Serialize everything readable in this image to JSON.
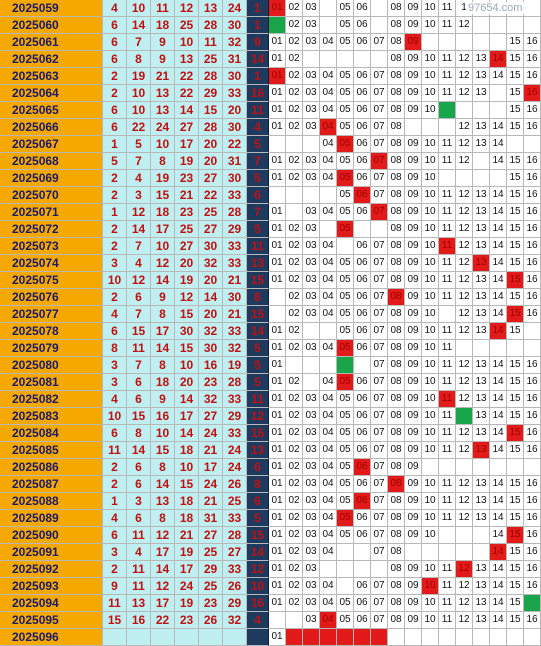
{
  "watermark": "97654.com",
  "colors": {
    "issue_bg": "#f5a800",
    "red_ball_bg": "#bfeff0",
    "blue_ball_bg": "#1f3a5f",
    "hit_red": "#e31a1a",
    "hit_green": "#19a64a"
  },
  "rows": [
    {
      "issue": "2025059",
      "reds": [
        "4",
        "10",
        "11",
        "12",
        "13",
        "24"
      ],
      "blue": "1",
      "trend": [
        "01",
        "02",
        "03",
        "",
        "05",
        "06",
        "",
        "08",
        "09",
        "10",
        "11",
        "1",
        "",
        "",
        "",
        ""
      ],
      "hot": [
        0
      ],
      "green": []
    },
    {
      "issue": "2025060",
      "reds": [
        "6",
        "14",
        "18",
        "25",
        "28",
        "30"
      ],
      "blue": "1",
      "trend": [
        "",
        "02",
        "03",
        "",
        "05",
        "06",
        "",
        "08",
        "09",
        "10",
        "11",
        "12",
        "",
        "",
        "",
        ""
      ],
      "hot": [],
      "green": [
        0
      ]
    },
    {
      "issue": "2025061",
      "reds": [
        "6",
        "7",
        "9",
        "10",
        "11",
        "32"
      ],
      "blue": "9",
      "trend": [
        "01",
        "02",
        "03",
        "04",
        "05",
        "06",
        "07",
        "08",
        "09",
        "",
        "",
        "",
        "",
        "",
        "15",
        "16"
      ],
      "hot": [
        8
      ],
      "green": []
    },
    {
      "issue": "2025062",
      "reds": [
        "6",
        "8",
        "9",
        "13",
        "25",
        "31"
      ],
      "blue": "14",
      "trend": [
        "01",
        "02",
        "",
        "",
        "",
        "",
        "",
        "08",
        "09",
        "10",
        "11",
        "12",
        "13",
        "14",
        "15",
        "16"
      ],
      "hot": [
        13
      ],
      "green": []
    },
    {
      "issue": "2025063",
      "reds": [
        "2",
        "19",
        "21",
        "22",
        "28",
        "30"
      ],
      "blue": "1",
      "trend": [
        "01",
        "02",
        "03",
        "04",
        "05",
        "06",
        "07",
        "08",
        "09",
        "10",
        "11",
        "12",
        "13",
        "14",
        "15",
        "16"
      ],
      "hot": [
        0
      ],
      "green": []
    },
    {
      "issue": "2025064",
      "reds": [
        "2",
        "10",
        "13",
        "22",
        "29",
        "33"
      ],
      "blue": "16",
      "trend": [
        "01",
        "02",
        "03",
        "04",
        "05",
        "06",
        "07",
        "08",
        "09",
        "10",
        "11",
        "12",
        "13",
        "",
        "15",
        "16"
      ],
      "hot": [
        15
      ],
      "green": []
    },
    {
      "issue": "2025065",
      "reds": [
        "6",
        "10",
        "13",
        "14",
        "15",
        "20"
      ],
      "blue": "11",
      "trend": [
        "01",
        "02",
        "03",
        "04",
        "05",
        "06",
        "07",
        "08",
        "09",
        "10",
        "11",
        "",
        "",
        "",
        "15",
        "16"
      ],
      "hot": [],
      "green": [
        10
      ]
    },
    {
      "issue": "2025066",
      "reds": [
        "6",
        "22",
        "24",
        "27",
        "28",
        "30"
      ],
      "blue": "4",
      "trend": [
        "01",
        "02",
        "03",
        "04",
        "05",
        "06",
        "07",
        "08",
        "",
        "",
        "",
        "12",
        "13",
        "14",
        "15",
        "16"
      ],
      "hot": [
        3
      ],
      "green": []
    },
    {
      "issue": "2025067",
      "reds": [
        "1",
        "5",
        "10",
        "17",
        "20",
        "22"
      ],
      "blue": "5",
      "trend": [
        "",
        "",
        "",
        "04",
        "05",
        "06",
        "07",
        "08",
        "09",
        "10",
        "11",
        "12",
        "13",
        "14",
        "",
        ""
      ],
      "hot": [
        4
      ],
      "green": []
    },
    {
      "issue": "2025068",
      "reds": [
        "5",
        "7",
        "8",
        "19",
        "20",
        "31"
      ],
      "blue": "7",
      "trend": [
        "01",
        "02",
        "03",
        "04",
        "05",
        "06",
        "07",
        "08",
        "09",
        "10",
        "11",
        "12",
        "",
        "14",
        "15",
        "16"
      ],
      "hot": [
        6
      ],
      "green": []
    },
    {
      "issue": "2025069",
      "reds": [
        "2",
        "4",
        "19",
        "23",
        "27",
        "30"
      ],
      "blue": "5",
      "trend": [
        "01",
        "02",
        "03",
        "04",
        "05",
        "06",
        "07",
        "08",
        "09",
        "10",
        "",
        "",
        "",
        "",
        "15",
        "16"
      ],
      "hot": [
        4
      ],
      "green": []
    },
    {
      "issue": "2025070",
      "reds": [
        "2",
        "3",
        "15",
        "21",
        "22",
        "33"
      ],
      "blue": "6",
      "trend": [
        "",
        "",
        "",
        "",
        "05",
        "06",
        "07",
        "08",
        "09",
        "10",
        "11",
        "12",
        "13",
        "14",
        "15",
        "16"
      ],
      "hot": [
        5
      ],
      "green": []
    },
    {
      "issue": "2025071",
      "reds": [
        "1",
        "12",
        "18",
        "23",
        "25",
        "28"
      ],
      "blue": "7",
      "trend": [
        "01",
        "",
        "03",
        "04",
        "05",
        "06",
        "07",
        "08",
        "09",
        "10",
        "11",
        "12",
        "13",
        "14",
        "15",
        "16"
      ],
      "hot": [
        6
      ],
      "green": []
    },
    {
      "issue": "2025072",
      "reds": [
        "2",
        "14",
        "17",
        "25",
        "27",
        "29"
      ],
      "blue": "5",
      "trend": [
        "01",
        "02",
        "03",
        "",
        "05",
        "",
        "",
        "08",
        "09",
        "10",
        "11",
        "12",
        "13",
        "14",
        "15",
        "16"
      ],
      "hot": [
        4
      ],
      "green": []
    },
    {
      "issue": "2025073",
      "reds": [
        "2",
        "7",
        "10",
        "27",
        "30",
        "33"
      ],
      "blue": "11",
      "trend": [
        "01",
        "02",
        "03",
        "04",
        "",
        "06",
        "07",
        "08",
        "09",
        "10",
        "11",
        "12",
        "13",
        "14",
        "15",
        "16"
      ],
      "hot": [
        10
      ],
      "green": []
    },
    {
      "issue": "2025074",
      "reds": [
        "3",
        "4",
        "12",
        "20",
        "32",
        "33"
      ],
      "blue": "13",
      "trend": [
        "01",
        "02",
        "03",
        "04",
        "05",
        "06",
        "07",
        "08",
        "09",
        "10",
        "11",
        "12",
        "13",
        "14",
        "15",
        "16"
      ],
      "hot": [
        12
      ],
      "green": []
    },
    {
      "issue": "2025075",
      "reds": [
        "10",
        "12",
        "14",
        "19",
        "20",
        "21"
      ],
      "blue": "15",
      "trend": [
        "01",
        "02",
        "03",
        "04",
        "05",
        "06",
        "07",
        "08",
        "09",
        "10",
        "11",
        "12",
        "13",
        "14",
        "15",
        "16"
      ],
      "hot": [
        14
      ],
      "green": []
    },
    {
      "issue": "2025076",
      "reds": [
        "2",
        "6",
        "9",
        "12",
        "14",
        "30"
      ],
      "blue": "8",
      "trend": [
        "",
        "02",
        "03",
        "04",
        "05",
        "06",
        "07",
        "08",
        "09",
        "10",
        "11",
        "12",
        "13",
        "14",
        "15",
        "16"
      ],
      "hot": [
        7
      ],
      "green": []
    },
    {
      "issue": "2025077",
      "reds": [
        "4",
        "7",
        "8",
        "15",
        "20",
        "21"
      ],
      "blue": "15",
      "trend": [
        "",
        "02",
        "03",
        "04",
        "05",
        "06",
        "07",
        "08",
        "09",
        "10",
        "",
        "12",
        "13",
        "14",
        "15",
        "16"
      ],
      "hot": [
        14
      ],
      "green": []
    },
    {
      "issue": "2025078",
      "reds": [
        "6",
        "15",
        "17",
        "30",
        "32",
        "33"
      ],
      "blue": "14",
      "trend": [
        "01",
        "02",
        "",
        "",
        "05",
        "06",
        "07",
        "08",
        "09",
        "10",
        "11",
        "12",
        "13",
        "14",
        "15",
        ""
      ],
      "hot": [
        13
      ],
      "green": []
    },
    {
      "issue": "2025079",
      "reds": [
        "8",
        "11",
        "14",
        "15",
        "30",
        "32"
      ],
      "blue": "5",
      "trend": [
        "01",
        "02",
        "03",
        "04",
        "05",
        "06",
        "07",
        "08",
        "09",
        "10",
        "11",
        "",
        "",
        "",
        "",
        ""
      ],
      "hot": [
        4
      ],
      "green": []
    },
    {
      "issue": "2025080",
      "reds": [
        "3",
        "7",
        "8",
        "10",
        "16",
        "19"
      ],
      "blue": "5",
      "trend": [
        "01",
        "",
        "",
        "",
        "05",
        "",
        "07",
        "08",
        "09",
        "10",
        "11",
        "12",
        "13",
        "14",
        "15",
        "16"
      ],
      "hot": [],
      "green": [
        4
      ]
    },
    {
      "issue": "2025081",
      "reds": [
        "3",
        "6",
        "18",
        "20",
        "23",
        "28"
      ],
      "blue": "5",
      "trend": [
        "01",
        "02",
        "",
        "04",
        "05",
        "06",
        "07",
        "08",
        "09",
        "10",
        "11",
        "12",
        "13",
        "14",
        "15",
        "16"
      ],
      "hot": [
        4
      ],
      "green": []
    },
    {
      "issue": "2025082",
      "reds": [
        "4",
        "6",
        "9",
        "14",
        "32",
        "33"
      ],
      "blue": "11",
      "trend": [
        "01",
        "02",
        "03",
        "04",
        "05",
        "06",
        "07",
        "08",
        "09",
        "10",
        "11",
        "12",
        "13",
        "14",
        "15",
        "16"
      ],
      "hot": [
        10
      ],
      "green": []
    },
    {
      "issue": "2025083",
      "reds": [
        "10",
        "15",
        "16",
        "17",
        "27",
        "29"
      ],
      "blue": "12",
      "trend": [
        "01",
        "02",
        "03",
        "04",
        "05",
        "06",
        "07",
        "08",
        "09",
        "10",
        "11",
        "12",
        "13",
        "14",
        "15",
        "16"
      ],
      "hot": [],
      "green": [
        11
      ]
    },
    {
      "issue": "2025084",
      "reds": [
        "6",
        "8",
        "10",
        "14",
        "24",
        "33"
      ],
      "blue": "15",
      "trend": [
        "01",
        "02",
        "03",
        "04",
        "05",
        "06",
        "07",
        "08",
        "09",
        "10",
        "11",
        "12",
        "13",
        "14",
        "15",
        "16"
      ],
      "hot": [
        14
      ],
      "green": []
    },
    {
      "issue": "2025085",
      "reds": [
        "11",
        "14",
        "15",
        "18",
        "21",
        "24"
      ],
      "blue": "13",
      "trend": [
        "01",
        "02",
        "03",
        "04",
        "05",
        "06",
        "07",
        "08",
        "09",
        "10",
        "11",
        "12",
        "13",
        "14",
        "15",
        "16"
      ],
      "hot": [
        12
      ],
      "green": []
    },
    {
      "issue": "2025086",
      "reds": [
        "2",
        "6",
        "8",
        "10",
        "17",
        "24"
      ],
      "blue": "6",
      "trend": [
        "01",
        "02",
        "03",
        "04",
        "05",
        "06",
        "07",
        "08",
        "09",
        "",
        "",
        "",
        "",
        "",
        "",
        ""
      ],
      "hot": [
        5
      ],
      "green": []
    },
    {
      "issue": "2025087",
      "reds": [
        "2",
        "6",
        "14",
        "15",
        "24",
        "26"
      ],
      "blue": "8",
      "trend": [
        "01",
        "02",
        "03",
        "04",
        "05",
        "06",
        "07",
        "08",
        "09",
        "10",
        "11",
        "12",
        "13",
        "14",
        "15",
        "16"
      ],
      "hot": [
        7
      ],
      "green": []
    },
    {
      "issue": "2025088",
      "reds": [
        "1",
        "3",
        "13",
        "18",
        "21",
        "25"
      ],
      "blue": "6",
      "trend": [
        "01",
        "02",
        "03",
        "04",
        "05",
        "06",
        "07",
        "08",
        "09",
        "10",
        "11",
        "12",
        "13",
        "14",
        "15",
        "16"
      ],
      "hot": [
        5
      ],
      "green": []
    },
    {
      "issue": "2025089",
      "reds": [
        "4",
        "6",
        "8",
        "18",
        "31",
        "33"
      ],
      "blue": "5",
      "trend": [
        "01",
        "02",
        "03",
        "04",
        "05",
        "06",
        "07",
        "08",
        "09",
        "10",
        "11",
        "12",
        "13",
        "14",
        "15",
        "16"
      ],
      "hot": [
        4
      ],
      "green": []
    },
    {
      "issue": "2025090",
      "reds": [
        "6",
        "11",
        "12",
        "21",
        "27",
        "28"
      ],
      "blue": "15",
      "trend": [
        "01",
        "02",
        "03",
        "04",
        "05",
        "06",
        "07",
        "08",
        "09",
        "10",
        "",
        "",
        "",
        "14",
        "15",
        "16"
      ],
      "hot": [
        14
      ],
      "green": []
    },
    {
      "issue": "2025091",
      "reds": [
        "3",
        "4",
        "17",
        "19",
        "25",
        "27"
      ],
      "blue": "14",
      "trend": [
        "01",
        "02",
        "03",
        "04",
        "",
        "",
        "07",
        "08",
        "",
        "",
        "",
        "",
        "",
        "14",
        "15",
        "16"
      ],
      "hot": [
        13
      ],
      "green": []
    },
    {
      "issue": "2025092",
      "reds": [
        "2",
        "11",
        "14",
        "17",
        "29",
        "33"
      ],
      "blue": "12",
      "trend": [
        "01",
        "02",
        "03",
        "",
        "",
        "",
        "",
        "08",
        "09",
        "10",
        "11",
        "12",
        "13",
        "14",
        "15",
        "16"
      ],
      "hot": [
        11
      ],
      "green": []
    },
    {
      "issue": "2025093",
      "reds": [
        "9",
        "11",
        "12",
        "24",
        "25",
        "26"
      ],
      "blue": "10",
      "trend": [
        "01",
        "02",
        "03",
        "04",
        "",
        "06",
        "07",
        "08",
        "09",
        "10",
        "11",
        "12",
        "13",
        "14",
        "15",
        "16"
      ],
      "hot": [
        9
      ],
      "green": []
    },
    {
      "issue": "2025094",
      "reds": [
        "11",
        "13",
        "17",
        "19",
        "23",
        "29"
      ],
      "blue": "16",
      "trend": [
        "01",
        "02",
        "03",
        "04",
        "05",
        "06",
        "07",
        "08",
        "09",
        "10",
        "11",
        "12",
        "13",
        "14",
        "15",
        "16"
      ],
      "hot": [],
      "green": [
        15
      ]
    },
    {
      "issue": "2025095",
      "reds": [
        "15",
        "16",
        "22",
        "23",
        "26",
        "32"
      ],
      "blue": "4",
      "trend": [
        "",
        "",
        "03",
        "04",
        "05",
        "06",
        "07",
        "08",
        "09",
        "10",
        "11",
        "12",
        "13",
        "14",
        "15",
        "16"
      ],
      "hot": [
        3
      ],
      "green": []
    },
    {
      "issue": "2025096",
      "reds": [
        "",
        "",
        "",
        "",
        "",
        ""
      ],
      "blue": "",
      "trend": [
        "01",
        "",
        "",
        "",
        "",
        "",
        "",
        "",
        "",
        "",
        "",
        "",
        "",
        "",
        "",
        ""
      ],
      "hot": [
        1,
        2,
        3,
        4,
        5,
        6
      ],
      "green": []
    }
  ]
}
